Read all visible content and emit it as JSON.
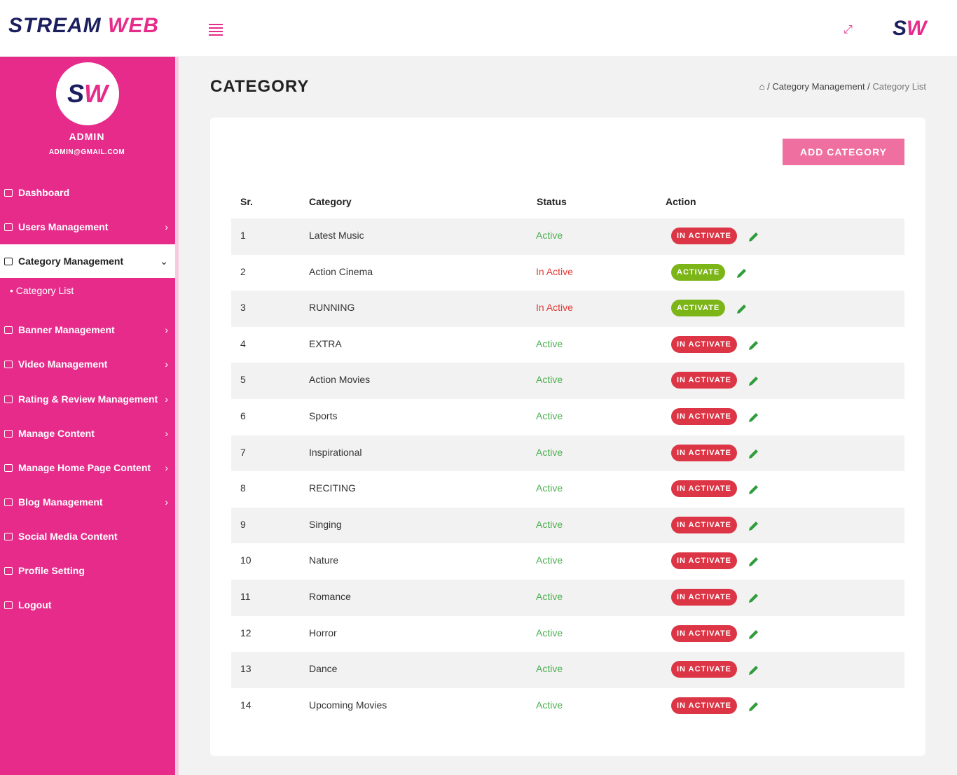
{
  "header": {
    "logo_main": "STREAM",
    "logo_accent": "WEB",
    "logo_mark_left": "S",
    "logo_mark_right": "W"
  },
  "sidebar": {
    "avatar_left": "S",
    "avatar_right": "W",
    "name": "ADMIN",
    "email": "ADMIN@GMAIL.COM",
    "menu": [
      "Dashboard",
      "Users Management",
      "Category Management",
      "Category List",
      "Banner Management",
      "Video Management",
      "Rating & Review Management",
      "Manage Content",
      "Manage Home Page Content",
      "Blog Management",
      "Social Media Content",
      "Profile Setting",
      "Logout"
    ]
  },
  "page": {
    "title": "CATEGORY",
    "breadcrumb": [
      "Category Management",
      "Category List"
    ],
    "add_button": "ADD CATEGORY"
  },
  "table": {
    "columns": [
      "Sr.",
      "Category",
      "Status",
      "Action"
    ],
    "rows": [
      {
        "sr": 1,
        "category": "Latest Music",
        "status": "Active",
        "status_color": "#4caf50",
        "action": "IN ACTIVATE",
        "action_color": "#dc3545"
      },
      {
        "sr": 2,
        "category": "Action Cinema",
        "status": "In Active",
        "status_color": "#e53935",
        "action": "ACTIVATE",
        "action_color": "#7cb518"
      },
      {
        "sr": 3,
        "category": "RUNNING",
        "status": "In Active",
        "status_color": "#e53935",
        "action": "ACTIVATE",
        "action_color": "#7cb518"
      },
      {
        "sr": 4,
        "category": "EXTRA",
        "status": "Active",
        "status_color": "#4caf50",
        "action": "IN ACTIVATE",
        "action_color": "#dc3545"
      },
      {
        "sr": 5,
        "category": "Action Movies",
        "status": "Active",
        "status_color": "#4caf50",
        "action": "IN ACTIVATE",
        "action_color": "#dc3545"
      },
      {
        "sr": 6,
        "category": "Sports",
        "status": "Active",
        "status_color": "#4caf50",
        "action": "IN ACTIVATE",
        "action_color": "#dc3545"
      },
      {
        "sr": 7,
        "category": "Inspirational",
        "status": "Active",
        "status_color": "#4caf50",
        "action": "IN ACTIVATE",
        "action_color": "#dc3545"
      },
      {
        "sr": 8,
        "category": "RECITING",
        "status": "Active",
        "status_color": "#4caf50",
        "action": "IN ACTIVATE",
        "action_color": "#dc3545"
      },
      {
        "sr": 9,
        "category": "Singing",
        "status": "Active",
        "status_color": "#4caf50",
        "action": "IN ACTIVATE",
        "action_color": "#dc3545"
      },
      {
        "sr": 10,
        "category": "Nature",
        "status": "Active",
        "status_color": "#4caf50",
        "action": "IN ACTIVATE",
        "action_color": "#dc3545"
      },
      {
        "sr": 11,
        "category": "Romance",
        "status": "Active",
        "status_color": "#4caf50",
        "action": "IN ACTIVATE",
        "action_color": "#dc3545"
      },
      {
        "sr": 12,
        "category": "Horror",
        "status": "Active",
        "status_color": "#4caf50",
        "action": "IN ACTIVATE",
        "action_color": "#dc3545"
      },
      {
        "sr": 13,
        "category": "Dance",
        "status": "Active",
        "status_color": "#4caf50",
        "action": "IN ACTIVATE",
        "action_color": "#dc3545"
      },
      {
        "sr": 14,
        "category": "Upcoming Movies",
        "status": "Active",
        "status_color": "#4caf50",
        "action": "IN ACTIVATE",
        "action_color": "#dc3545"
      }
    ]
  }
}
